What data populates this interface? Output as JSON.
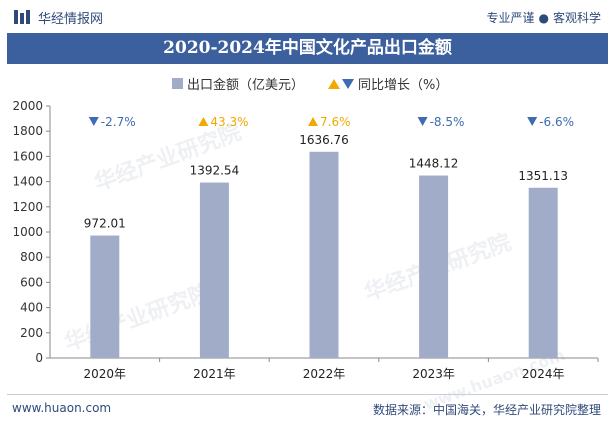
{
  "header": {
    "brand": "华经情报网",
    "slogan_left": "专业严谨",
    "slogan_right": "客观科学"
  },
  "title": "2020-2024年中国文化产品出口金额",
  "legend": {
    "bar_label": "出口金额（亿美元）",
    "line_label": "同比增长（%）"
  },
  "chart_data": {
    "type": "bar",
    "categories": [
      "2020年",
      "2021年",
      "2022年",
      "2023年",
      "2024年"
    ],
    "series": [
      {
        "name": "出口金额（亿美元）",
        "values": [
          972.01,
          1392.54,
          1636.76,
          1448.12,
          1351.13
        ],
        "color": "#a1adc8"
      },
      {
        "name": "同比增长（%）",
        "values": [
          -2.7,
          43.3,
          7.6,
          -8.5,
          -6.6
        ]
      }
    ],
    "value_labels": [
      "972.01",
      "1392.54",
      "1636.76",
      "1448.12",
      "1351.13"
    ],
    "growth_labels": [
      "-2.7%",
      "43.3%",
      "7.6%",
      "-8.5%",
      "-6.6%"
    ],
    "ylim": [
      0,
      2000
    ],
    "yticks": [
      0,
      200,
      400,
      600,
      800,
      1000,
      1200,
      1400,
      1600,
      1800,
      2000
    ],
    "up_color": "#f2a900",
    "down_color": "#3d6bb4"
  },
  "watermark": "华经产业研究院",
  "watermark_url": "www.huaon.com",
  "footer": {
    "website": "www.huaon.com",
    "source": "数据来源：中国海关，华经产业研究院整理"
  }
}
